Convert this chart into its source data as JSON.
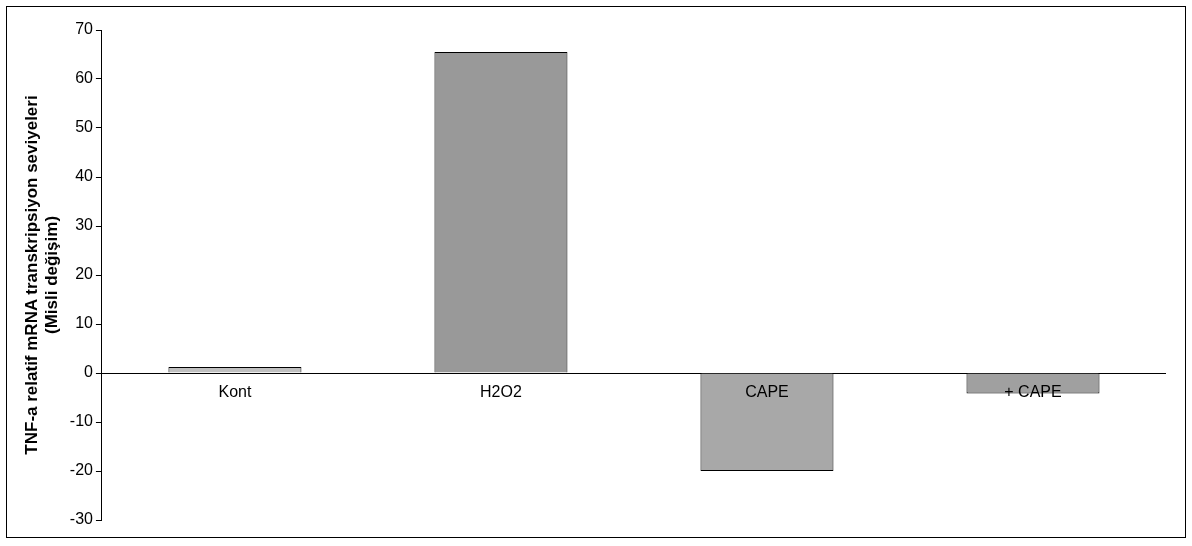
{
  "chart_data": {
    "type": "bar",
    "ylabel": "TNF-a relatif mRNA transkripsiyon seviyeleri\n(Misli değişim)",
    "categories": [
      "Kont",
      "H2O2",
      "CAPE",
      "+ CAPE"
    ],
    "values": [
      1.2,
      65.5,
      -20,
      -4.2
    ],
    "colors": [
      "#c0c0c0",
      "#999999",
      "#a8a8a8",
      "#a0a0a0"
    ],
    "ylim": [
      -30,
      70
    ],
    "yticks": [
      -30,
      -20,
      -10,
      0,
      10,
      20,
      30,
      40,
      50,
      60,
      70
    ],
    "grid": false,
    "legend": false
  }
}
